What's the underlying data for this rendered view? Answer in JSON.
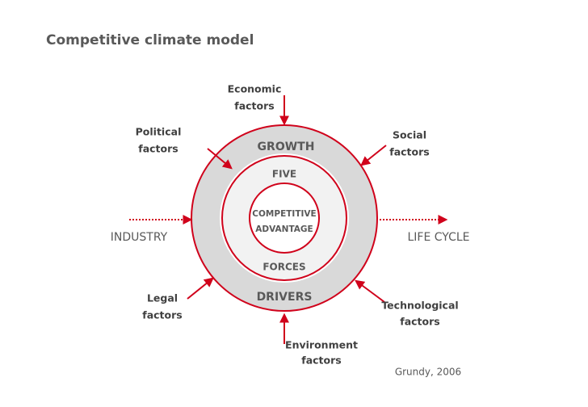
{
  "title": "Competitive climate model",
  "rings": {
    "outer_top": "GROWTH",
    "outer_bottom": "DRIVERS",
    "middle_top": "FIVE",
    "middle_bottom": "FORCES",
    "center": [
      "COMPETITIVE",
      "ADVANTAGE"
    ]
  },
  "axis": {
    "left": "INDUSTRY",
    "right": "LIFE CYCLE"
  },
  "factors": {
    "economic": [
      "Economic",
      "factors"
    ],
    "political": [
      "Political",
      "factors"
    ],
    "social": [
      "Social",
      "factors"
    ],
    "legal": [
      "Legal",
      "factors"
    ],
    "technological": [
      "Technological",
      "factors"
    ],
    "environment": [
      "Environment",
      "factors"
    ]
  },
  "citation": "Grundy, 2006"
}
